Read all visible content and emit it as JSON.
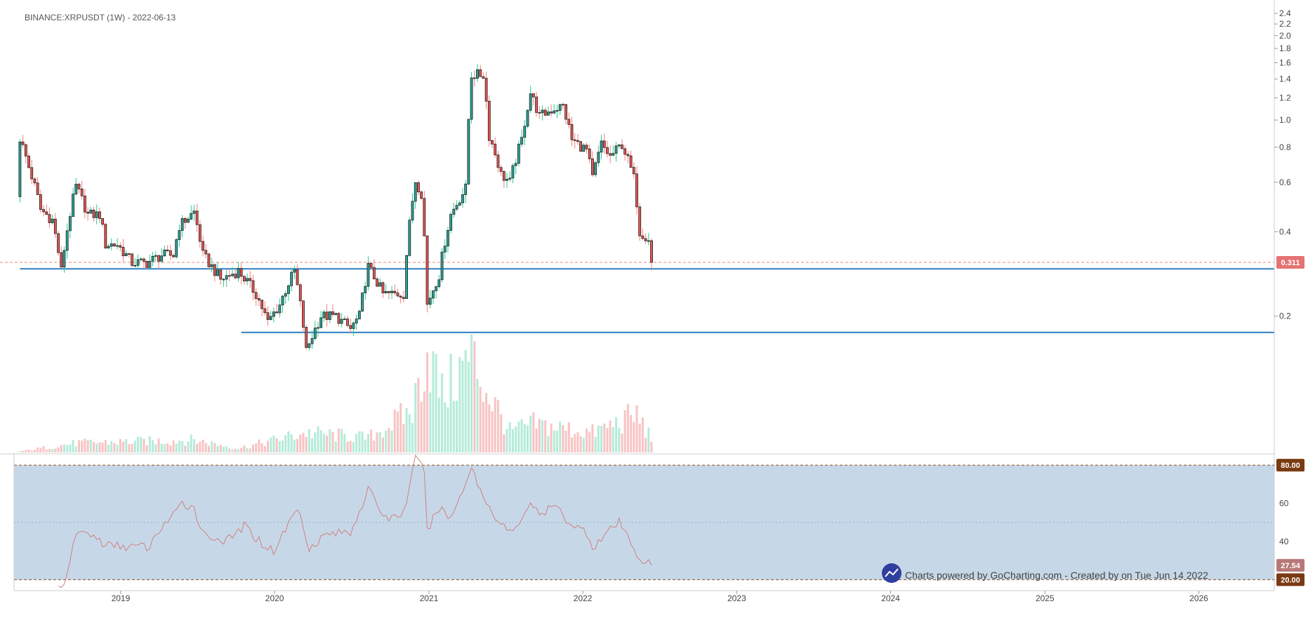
{
  "header": {
    "symbol_label": "BINANCE:XRPUSDT (1W) - 2022-06-13"
  },
  "footer": {
    "credit": "Charts powered by GoCharting.com - Created by  on Tue Jun 14 2022"
  },
  "colors": {
    "up": "#26a69a",
    "down": "#ef5350",
    "wick_up": "#2ecc8a",
    "wick_down": "#f08080",
    "body_border": "#222222",
    "hline": "#2f7fc0",
    "last_price": "#f08080",
    "rsi_band": "#c6d8e8",
    "rsi_line": "#d08080",
    "bound_label": "#7a3a12",
    "rsi_value_label": "#b87878"
  },
  "chart_data": [
    {
      "type": "candlestick",
      "title": "BINANCE:XRPUSDT (1W) - 2022-06-13",
      "y_scale": "log",
      "ylim": [
        0.095,
        2.5
      ],
      "y_ticks": [
        0.2,
        0.4,
        0.6,
        0.8,
        1.0,
        1.2,
        1.4,
        1.6,
        1.8,
        2.0,
        2.2,
        2.4
      ],
      "y_tick_labels": [
        "0.2",
        "0.4",
        "0.6",
        "0.8",
        "1.0",
        "1.2",
        "1.4",
        "1.6",
        "1.8",
        "2.0",
        "2.2",
        "2.4"
      ],
      "x_range": [
        "2018-04-23",
        "2026-06-29"
      ],
      "x_ticks": [
        "2019-01-01",
        "2020-01-01",
        "2021-01-01",
        "2022-01-01",
        "2023-01-01",
        "2024-01-01",
        "2025-01-01",
        "2026-01-01"
      ],
      "x_tick_labels": [
        "2019",
        "2020",
        "2021",
        "2022",
        "2023",
        "2024",
        "2025",
        "2026"
      ],
      "last_price": 0.311,
      "last_price_label": "0.311",
      "horizontal_lines": [
        {
          "value": 0.295,
          "start": "2018-05-07"
        },
        {
          "value": 0.175,
          "start": "2019-10-14"
        }
      ],
      "keypoints": [
        [
          "2018-05-07",
          0.86
        ],
        [
          "2018-05-28",
          0.68
        ],
        [
          "2018-06-25",
          0.48
        ],
        [
          "2018-07-23",
          0.44
        ],
        [
          "2018-08-13",
          0.29
        ],
        [
          "2018-09-17",
          0.58
        ],
        [
          "2018-10-15",
          0.46
        ],
        [
          "2018-11-12",
          0.46
        ],
        [
          "2018-11-26",
          0.36
        ],
        [
          "2018-12-24",
          0.36
        ],
        [
          "2019-01-28",
          0.31
        ],
        [
          "2019-03-04",
          0.31
        ],
        [
          "2019-04-08",
          0.33
        ],
        [
          "2019-05-06",
          0.33
        ],
        [
          "2019-05-20",
          0.42
        ],
        [
          "2019-06-24",
          0.47
        ],
        [
          "2019-07-15",
          0.33
        ],
        [
          "2019-08-26",
          0.27
        ],
        [
          "2019-10-07",
          0.29
        ],
        [
          "2019-11-18",
          0.24
        ],
        [
          "2019-12-16",
          0.19
        ],
        [
          "2020-01-13",
          0.22
        ],
        [
          "2020-02-17",
          0.29
        ],
        [
          "2020-03-16",
          0.15
        ],
        [
          "2020-04-20",
          0.2
        ],
        [
          "2020-05-25",
          0.2
        ],
        [
          "2020-06-29",
          0.18
        ],
        [
          "2020-07-20",
          0.2
        ],
        [
          "2020-08-10",
          0.3
        ],
        [
          "2020-09-14",
          0.24
        ],
        [
          "2020-11-02",
          0.24
        ],
        [
          "2020-11-30",
          0.61
        ],
        [
          "2020-12-14",
          0.55
        ],
        [
          "2020-12-28",
          0.22
        ],
        [
          "2021-01-25",
          0.28
        ],
        [
          "2021-02-22",
          0.46
        ],
        [
          "2021-03-29",
          0.57
        ],
        [
          "2021-04-12",
          1.45
        ],
        [
          "2021-05-10",
          1.45
        ],
        [
          "2021-05-24",
          0.88
        ],
        [
          "2021-06-21",
          0.64
        ],
        [
          "2021-07-12",
          0.6
        ],
        [
          "2021-08-09",
          0.85
        ],
        [
          "2021-08-30",
          1.25
        ],
        [
          "2021-09-20",
          1.03
        ],
        [
          "2021-10-25",
          1.1
        ],
        [
          "2021-11-15",
          1.12
        ],
        [
          "2021-12-06",
          0.85
        ],
        [
          "2022-01-10",
          0.78
        ],
        [
          "2022-01-24",
          0.62
        ],
        [
          "2022-02-14",
          0.82
        ],
        [
          "2022-03-07",
          0.74
        ],
        [
          "2022-04-04",
          0.82
        ],
        [
          "2022-05-02",
          0.62
        ],
        [
          "2022-05-16",
          0.4
        ],
        [
          "2022-06-06",
          0.38
        ],
        [
          "2022-06-13",
          0.311
        ]
      ],
      "volume_peaks": [
        [
          "2018-05-07",
          0.01
        ],
        [
          "2018-09-17",
          0.09
        ],
        [
          "2019-06-24",
          0.12
        ],
        [
          "2019-10-07",
          0.04
        ],
        [
          "2020-03-16",
          0.19
        ],
        [
          "2020-08-10",
          0.14
        ],
        [
          "2020-11-23",
          0.4
        ],
        [
          "2020-12-28",
          1.0
        ],
        [
          "2021-02-01",
          0.55
        ],
        [
          "2021-04-12",
          0.92
        ],
        [
          "2021-05-17",
          0.6
        ],
        [
          "2021-07-12",
          0.2
        ],
        [
          "2021-09-06",
          0.27
        ],
        [
          "2022-01-24",
          0.19
        ],
        [
          "2022-05-09",
          0.36
        ],
        [
          "2022-06-13",
          0.13
        ]
      ]
    },
    {
      "type": "line",
      "name": "RSI",
      "ylim": [
        15,
        83
      ],
      "y_ticks": [
        40,
        60
      ],
      "y_tick_labels": [
        "40",
        "60"
      ],
      "upper_bound": 80,
      "lower_bound": 20,
      "upper_label": "80.00",
      "lower_label": "20.00",
      "mid_level": 50,
      "last_value": 27.54,
      "last_label": "27.54",
      "keypoints": [
        [
          "2018-08-06",
          16
        ],
        [
          "2018-08-27",
          21
        ],
        [
          "2018-09-17",
          45
        ],
        [
          "2018-10-22",
          44
        ],
        [
          "2018-11-26",
          38
        ],
        [
          "2019-03-11",
          37
        ],
        [
          "2019-04-08",
          48
        ],
        [
          "2019-05-13",
          55
        ],
        [
          "2019-05-27",
          60
        ],
        [
          "2019-06-24",
          58
        ],
        [
          "2019-07-15",
          44
        ],
        [
          "2019-09-09",
          40
        ],
        [
          "2019-10-21",
          48
        ],
        [
          "2019-12-02",
          39
        ],
        [
          "2019-12-30",
          35
        ],
        [
          "2020-02-24",
          58
        ],
        [
          "2020-03-23",
          37
        ],
        [
          "2020-05-04",
          44
        ],
        [
          "2020-06-29",
          45
        ],
        [
          "2020-08-10",
          67
        ],
        [
          "2020-09-21",
          52
        ],
        [
          "2020-11-02",
          55
        ],
        [
          "2020-11-30",
          83
        ],
        [
          "2020-12-21",
          78
        ],
        [
          "2020-12-28",
          45
        ],
        [
          "2021-01-25",
          58
        ],
        [
          "2021-02-22",
          52
        ],
        [
          "2021-04-12",
          79
        ],
        [
          "2021-05-10",
          63
        ],
        [
          "2021-06-21",
          49
        ],
        [
          "2021-07-19",
          44
        ],
        [
          "2021-08-30",
          61
        ],
        [
          "2021-09-20",
          53
        ],
        [
          "2021-10-25",
          59
        ],
        [
          "2021-11-22",
          52
        ],
        [
          "2021-12-13",
          48
        ],
        [
          "2022-01-10",
          45
        ],
        [
          "2022-01-24",
          37
        ],
        [
          "2022-03-07",
          46
        ],
        [
          "2022-03-28",
          50
        ],
        [
          "2022-04-18",
          42
        ],
        [
          "2022-05-16",
          31
        ],
        [
          "2022-06-13",
          27.54
        ]
      ]
    }
  ]
}
